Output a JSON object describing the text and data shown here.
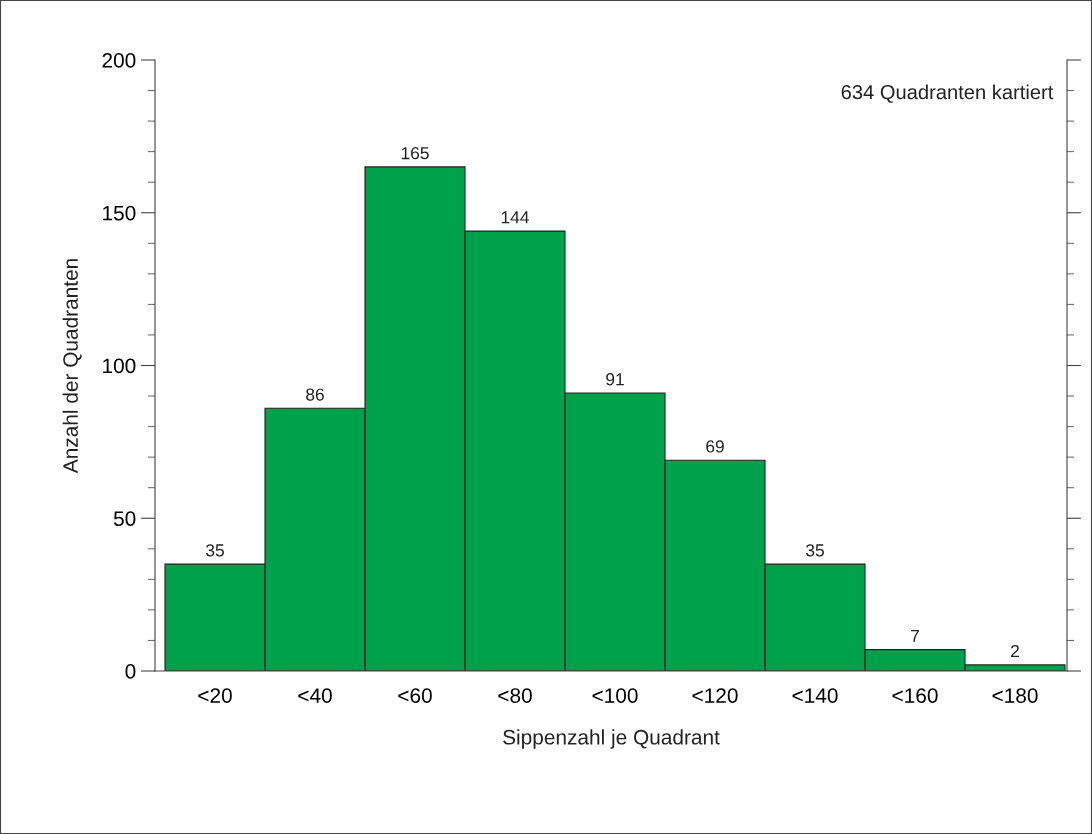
{
  "chart_data": {
    "type": "bar",
    "xlabel": "Sippenzahl je Quadrant",
    "ylabel": "Anzahl der Quadranten",
    "categories": [
      "<20",
      "<40",
      "<60",
      "<80",
      "<100",
      "<120",
      "<140",
      "<160",
      "<180"
    ],
    "values": [
      35,
      86,
      165,
      144,
      91,
      69,
      35,
      7,
      2
    ],
    "color": "#00a14b",
    "ylim": [
      0,
      200
    ],
    "yticks": [
      0,
      50,
      100,
      150,
      200
    ],
    "data_labels": true,
    "grid": false,
    "annotations": [
      "634 Quadranten kartiert"
    ]
  }
}
